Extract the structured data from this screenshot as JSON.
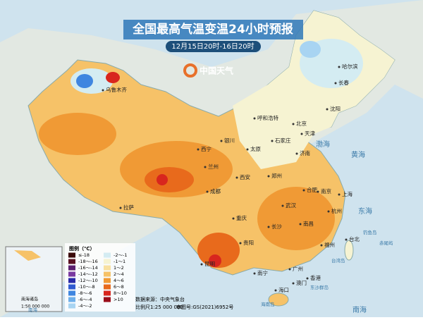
{
  "header": {
    "title": "全国最高气温变温24小时预报",
    "subtitle": "12月15日20时-16日20时",
    "logo": "中国天气"
  },
  "legend": {
    "title": "图例（℃）",
    "items": [
      {
        "label": "≤-18",
        "color": "#3b0a0a"
      },
      {
        "label": "-18～-16",
        "color": "#5a1020"
      },
      {
        "label": "-16～-14",
        "color": "#5b1f6e"
      },
      {
        "label": "-14～-12",
        "color": "#7a3aa0"
      },
      {
        "label": "-12～-10",
        "color": "#2a2aa8"
      },
      {
        "label": "-10～-8",
        "color": "#2f5ad0"
      },
      {
        "label": "-8～-6",
        "color": "#3f86e0"
      },
      {
        "label": "-6～-4",
        "color": "#6fb0ea"
      },
      {
        "label": "-4～-2",
        "color": "#a8d4f2"
      },
      {
        "label": "-2～-1",
        "color": "#d4ecf2"
      },
      {
        "label": "-1～1",
        "color": "#f6f3d2"
      },
      {
        "label": "1～2",
        "color": "#f8e0a0"
      },
      {
        "label": "2～4",
        "color": "#f6c268"
      },
      {
        "label": "4～6",
        "color": "#f09a35"
      },
      {
        "label": "6～8",
        "color": "#e86a1c"
      },
      {
        "label": "8～10",
        "color": "#d8261e"
      },
      {
        "label": ">10",
        "color": "#9a0d1a"
      }
    ]
  },
  "footer": {
    "source": "数据来源：中央气象台",
    "scale": "比例尺1:25 000 000",
    "approval": "审图号:GS(2021)6952号"
  },
  "inset": {
    "label": "南海诸岛",
    "scale": "1:50 000 000"
  },
  "cities": [
    "哈尔滨",
    "长春",
    "沈阳",
    "呼和浩特",
    "北京",
    "天津",
    "石家庄",
    "太原",
    "济南",
    "银川",
    "西宁",
    "兰州",
    "西安",
    "郑州",
    "合肥",
    "南京",
    "上海",
    "武汉",
    "杭州",
    "成都",
    "重庆",
    "长沙",
    "南昌",
    "贵阳",
    "福州",
    "台北",
    "昆明",
    "南宁",
    "广州",
    "香港",
    "澳门",
    "海口",
    "拉萨",
    "乌鲁木齐"
  ],
  "seas": [
    "渤海",
    "黄海",
    "东海",
    "南海",
    "台湾岛",
    "钓鱼岛",
    "赤尾屿",
    "东沙群岛",
    "海南岛",
    "南海"
  ]
}
